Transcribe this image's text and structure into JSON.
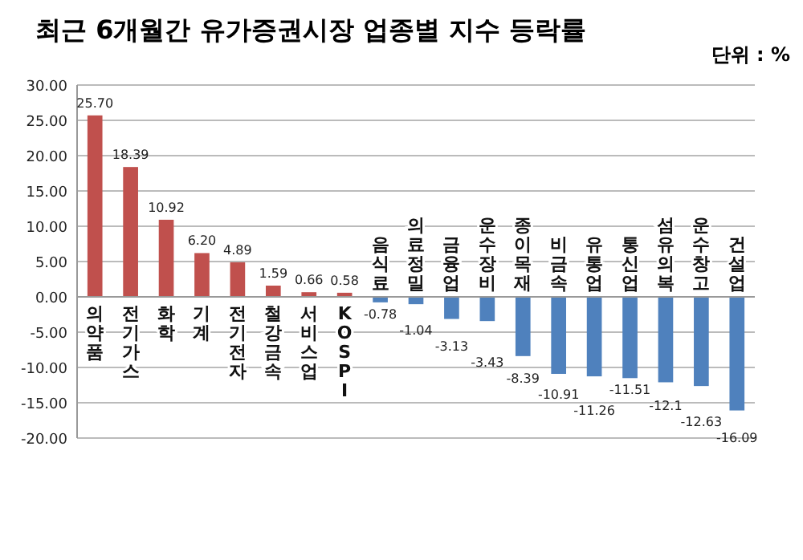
{
  "chart_data": {
    "type": "bar",
    "title": "최근 6개월간 유가증권시장 업종별 지수 등락률",
    "annotations": [
      "단위 : %"
    ],
    "categories": [
      "의약품",
      "전기가스",
      "화학",
      "기계",
      "전기전자",
      "철강금속",
      "서비스업",
      "KOSPI",
      "음식료",
      "의료정밀",
      "금융업",
      "운수장비",
      "종이목재",
      "비금속",
      "유통업",
      "통신업",
      "섬유의복",
      "운수창고",
      "건설업"
    ],
    "values": [
      25.7,
      18.39,
      10.92,
      6.2,
      4.89,
      1.59,
      0.66,
      0.58,
      -0.78,
      -1.04,
      -3.13,
      -3.43,
      -8.39,
      -10.91,
      -11.26,
      -11.51,
      -12.1,
      -12.63,
      -16.09
    ],
    "value_labels": [
      "25.70",
      "18.39",
      "10.92",
      "6.20",
      "4.89",
      "1.59",
      "0.66",
      "0.58",
      "-0.78",
      "-1.04",
      "-3.13",
      "-3.43",
      "-8.39",
      "-10.91",
      "-11.26",
      "-11.51",
      "-12.1",
      "-12.63",
      "-16.09"
    ],
    "colors": [
      "#c0504d",
      "#c0504d",
      "#c0504d",
      "#c0504d",
      "#c0504d",
      "#c0504d",
      "#c0504d",
      "#c0504d",
      "#4f81bd",
      "#4f81bd",
      "#4f81bd",
      "#4f81bd",
      "#4f81bd",
      "#4f81bd",
      "#4f81bd",
      "#4f81bd",
      "#4f81bd",
      "#4f81bd",
      "#4f81bd"
    ],
    "ylim": [
      -20,
      30
    ],
    "yticks": [
      {
        "value": -20,
        "label": "-20.00"
      },
      {
        "value": -15,
        "label": "-15.00"
      },
      {
        "value": -10,
        "label": "-10.00"
      },
      {
        "value": -5,
        "label": "-5.00"
      },
      {
        "value": 0,
        "label": "0.00"
      },
      {
        "value": 5,
        "label": "5.00"
      },
      {
        "value": 10,
        "label": "10.00"
      },
      {
        "value": 15,
        "label": "15.00"
      },
      {
        "value": 20,
        "label": "20.00"
      },
      {
        "value": 25,
        "label": "25.00"
      },
      {
        "value": 30,
        "label": "30.00"
      }
    ],
    "grid": "y",
    "legend": false
  }
}
